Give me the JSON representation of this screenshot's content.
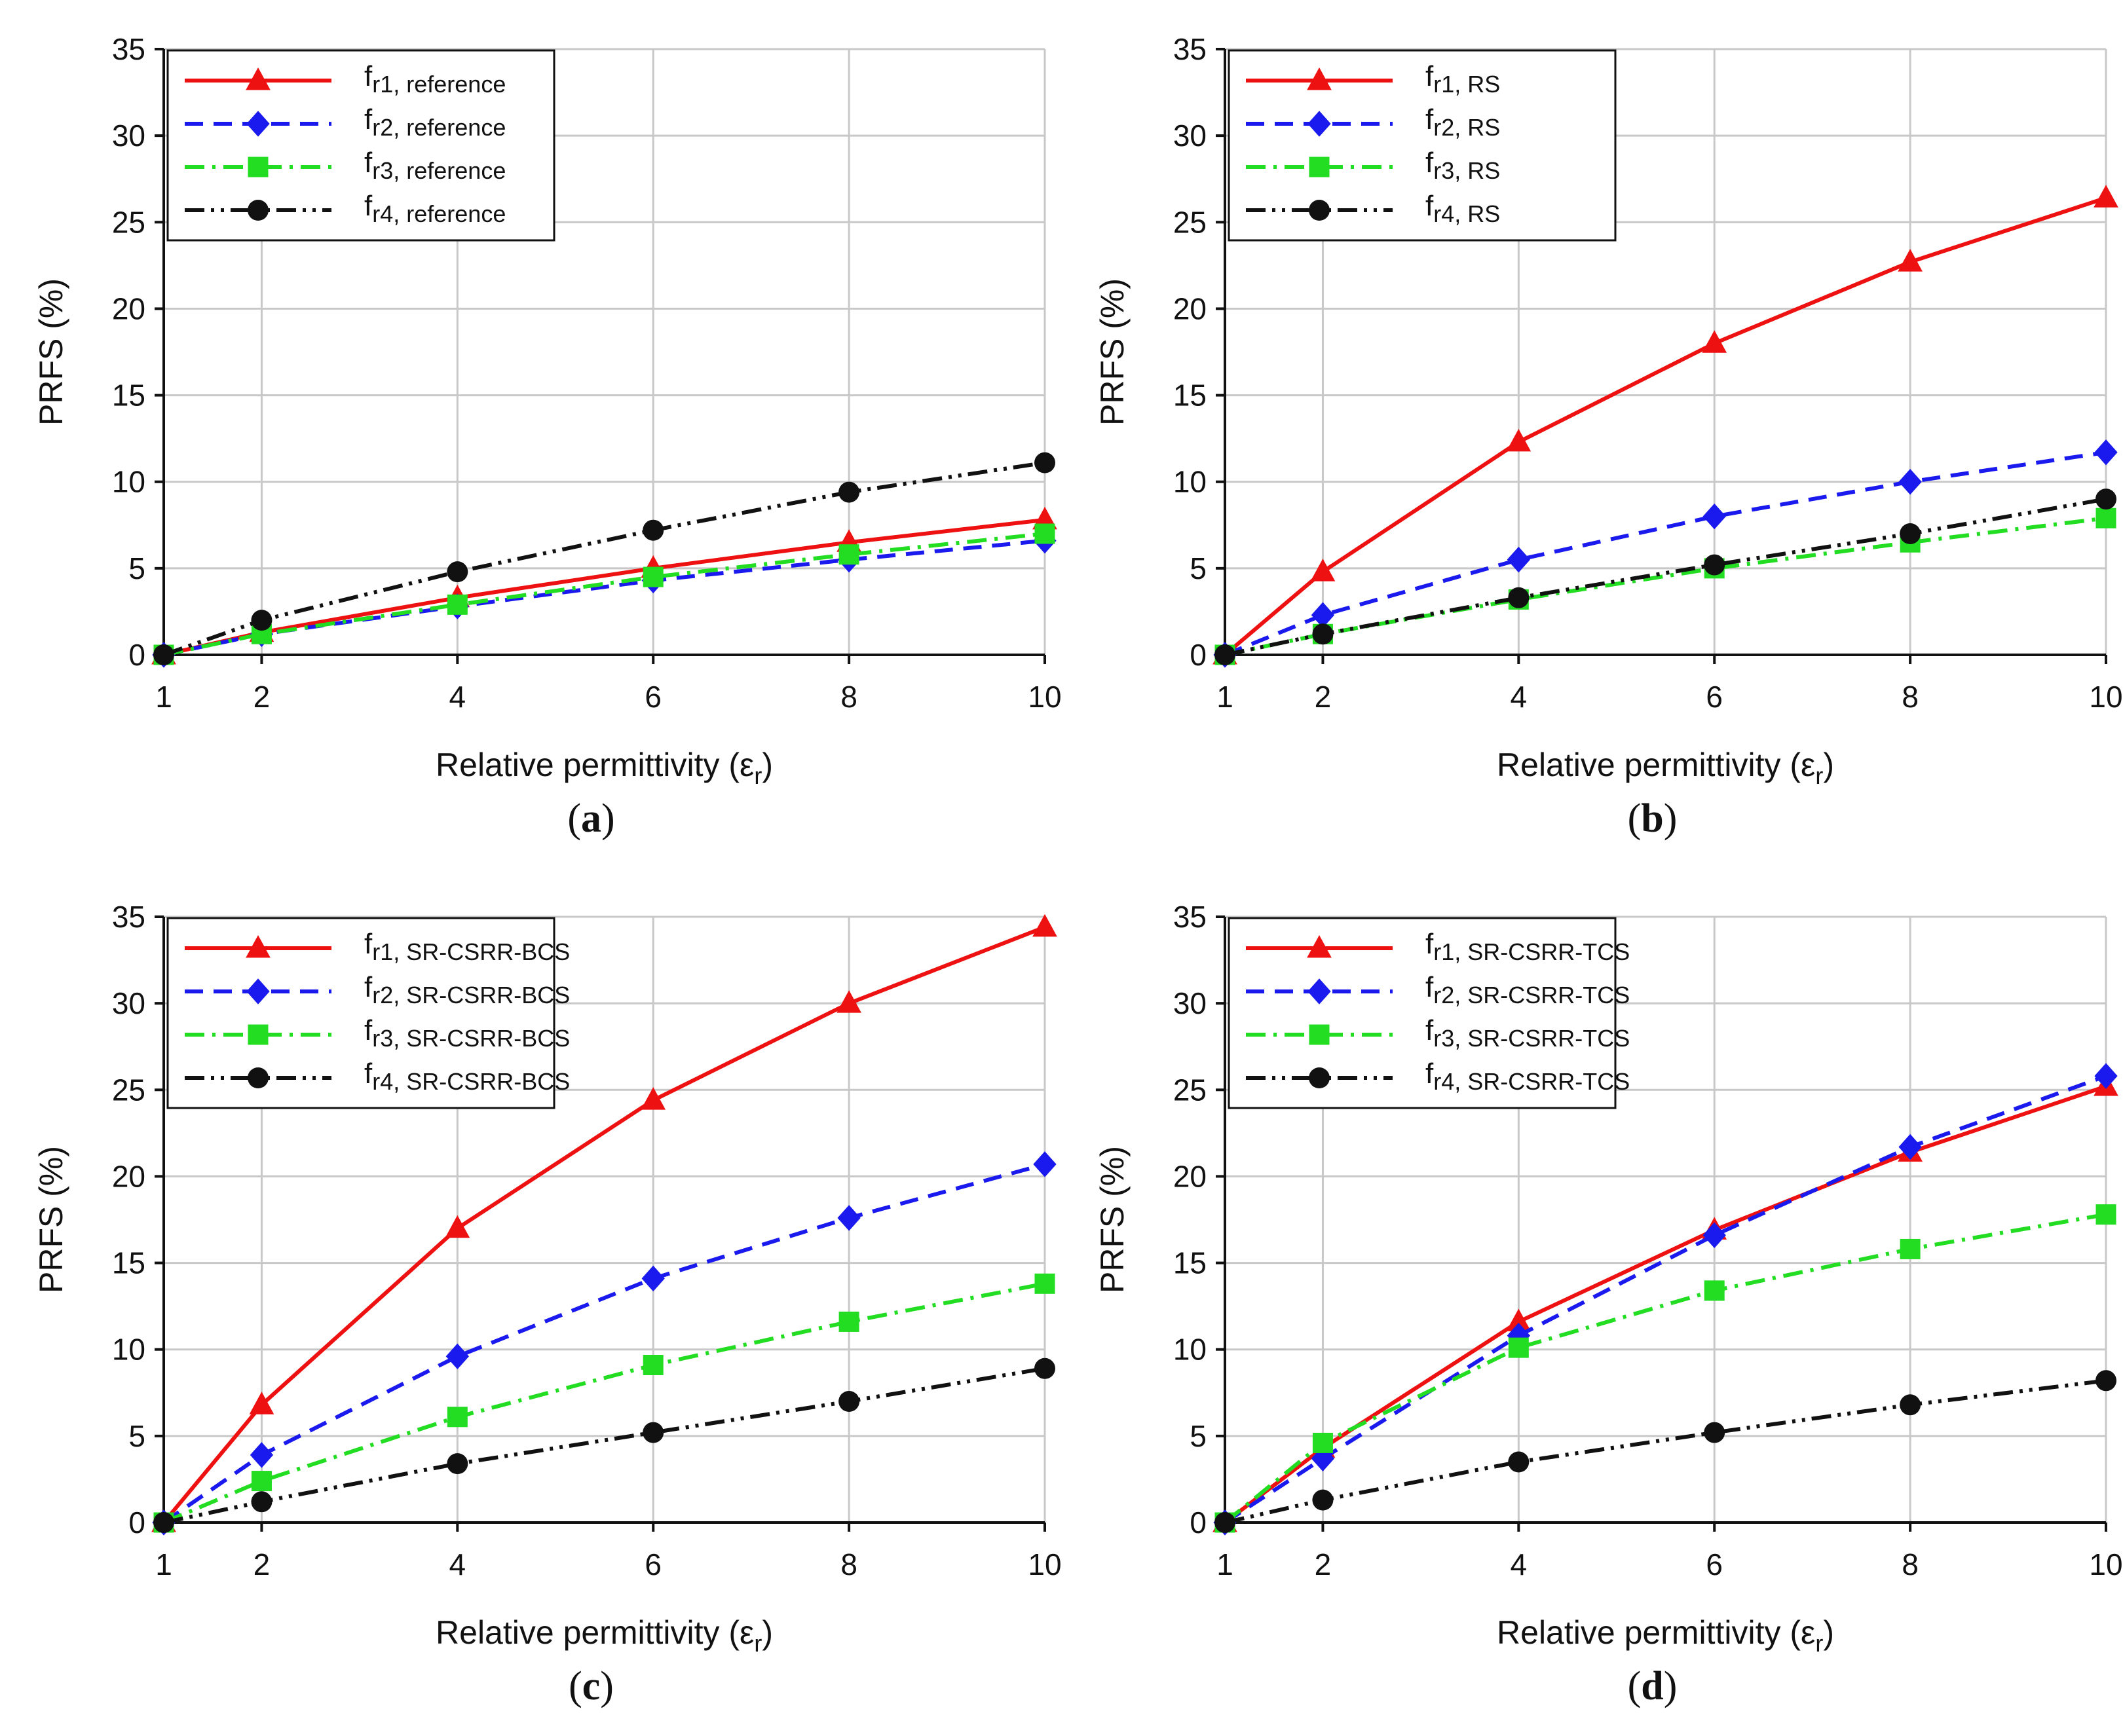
{
  "chart_data": [
    {
      "type": "line",
      "panel_label": "a",
      "caption": "(a)",
      "xlabel_main": "Relative permittivity (ε",
      "xlabel_sub": "r",
      "xlabel_close": ")",
      "ylabel": "PRFS (%)",
      "x": [
        1,
        2,
        4,
        6,
        8,
        10
      ],
      "xticks": [
        1,
        2,
        4,
        6,
        8,
        10
      ],
      "yticks": [
        0,
        5,
        10,
        15,
        20,
        25,
        30,
        35
      ],
      "xlim": [
        1,
        10
      ],
      "ylim": [
        0,
        35
      ],
      "grid": true,
      "legend_position": "top-left",
      "series": [
        {
          "name_main": "f",
          "name_sub": "r1, reference",
          "values": [
            0,
            1.3,
            3.3,
            5.0,
            6.5,
            7.8
          ],
          "color": "#ee1111",
          "marker": "triangle",
          "dash": "none"
        },
        {
          "name_main": "f",
          "name_sub": "r2, reference",
          "values": [
            0,
            1.2,
            2.8,
            4.3,
            5.5,
            6.6
          ],
          "color": "#1a1aee",
          "marker": "diamond",
          "dash": "dash"
        },
        {
          "name_main": "f",
          "name_sub": "r3, reference",
          "values": [
            0,
            1.2,
            2.9,
            4.5,
            5.8,
            7.0
          ],
          "color": "#22dd22",
          "marker": "square",
          "dash": "dashdot"
        },
        {
          "name_main": "f",
          "name_sub": "r4, reference",
          "values": [
            0,
            2.0,
            4.8,
            7.2,
            9.4,
            11.1
          ],
          "color": "#111111",
          "marker": "circle",
          "dash": "dashdotdot"
        }
      ]
    },
    {
      "type": "line",
      "panel_label": "b",
      "caption": "(b)",
      "xlabel_main": "Relative permittivity (ε",
      "xlabel_sub": "r",
      "xlabel_close": ")",
      "ylabel": "PRFS (%)",
      "x": [
        1,
        2,
        4,
        6,
        8,
        10
      ],
      "xticks": [
        1,
        2,
        4,
        6,
        8,
        10
      ],
      "yticks": [
        0,
        5,
        10,
        15,
        20,
        25,
        30,
        35
      ],
      "xlim": [
        1,
        10
      ],
      "ylim": [
        0,
        35
      ],
      "grid": true,
      "legend_position": "top-left",
      "series": [
        {
          "name_main": "f",
          "name_sub": "r1, RS",
          "values": [
            0,
            4.8,
            12.3,
            18.0,
            22.7,
            26.4
          ],
          "color": "#ee1111",
          "marker": "triangle",
          "dash": "none"
        },
        {
          "name_main": "f",
          "name_sub": "r2, RS",
          "values": [
            0,
            2.3,
            5.5,
            8.0,
            10.0,
            11.7
          ],
          "color": "#1a1aee",
          "marker": "diamond",
          "dash": "dash"
        },
        {
          "name_main": "f",
          "name_sub": "r3, RS",
          "values": [
            0,
            1.2,
            3.2,
            5.0,
            6.5,
            7.9
          ],
          "color": "#22dd22",
          "marker": "square",
          "dash": "dashdot"
        },
        {
          "name_main": "f",
          "name_sub": "r4, RS",
          "values": [
            0,
            1.2,
            3.3,
            5.2,
            7.0,
            9.0
          ],
          "color": "#111111",
          "marker": "circle",
          "dash": "dashdotdot"
        }
      ]
    },
    {
      "type": "line",
      "panel_label": "c",
      "caption": "(c)",
      "xlabel_main": "Relative permittivity (ε",
      "xlabel_sub": "r",
      "xlabel_close": ")",
      "ylabel": "PRFS (%)",
      "x": [
        1,
        2,
        4,
        6,
        8,
        10
      ],
      "xticks": [
        1,
        2,
        4,
        6,
        8,
        10
      ],
      "yticks": [
        0,
        5,
        10,
        15,
        20,
        25,
        30,
        35
      ],
      "xlim": [
        1,
        10
      ],
      "ylim": [
        0,
        35
      ],
      "grid": true,
      "legend_position": "top-left",
      "series": [
        {
          "name_main": "f",
          "name_sub": "r1, SR-CSRR-BCS",
          "values": [
            0,
            6.8,
            17.0,
            24.4,
            30.0,
            34.4
          ],
          "color": "#ee1111",
          "marker": "triangle",
          "dash": "none"
        },
        {
          "name_main": "f",
          "name_sub": "r2, SR-CSRR-BCS",
          "values": [
            0,
            3.9,
            9.6,
            14.1,
            17.6,
            20.7
          ],
          "color": "#1a1aee",
          "marker": "diamond",
          "dash": "dash"
        },
        {
          "name_main": "f",
          "name_sub": "r3, SR-CSRR-BCS",
          "values": [
            0,
            2.4,
            6.1,
            9.1,
            11.6,
            13.8
          ],
          "color": "#22dd22",
          "marker": "square",
          "dash": "dashdot"
        },
        {
          "name_main": "f",
          "name_sub": "r4, SR-CSRR-BCS",
          "values": [
            0,
            1.2,
            3.4,
            5.2,
            7.0,
            8.9
          ],
          "color": "#111111",
          "marker": "circle",
          "dash": "dashdotdot"
        }
      ]
    },
    {
      "type": "line",
      "panel_label": "d",
      "caption": "(d)",
      "xlabel_main": "Relative permittivity (ε",
      "xlabel_sub": "r",
      "xlabel_close": ")",
      "ylabel": "PRFS (%)",
      "x": [
        1,
        2,
        4,
        6,
        8,
        10
      ],
      "xticks": [
        1,
        2,
        4,
        6,
        8,
        10
      ],
      "yticks": [
        0,
        5,
        10,
        15,
        20,
        25,
        30,
        35
      ],
      "xlim": [
        1,
        10
      ],
      "ylim": [
        0,
        35
      ],
      "grid": true,
      "legend_position": "top-left",
      "series": [
        {
          "name_main": "f",
          "name_sub": "r1, SR-CSRR-TCS",
          "values": [
            0,
            4.3,
            11.6,
            16.9,
            21.4,
            25.2
          ],
          "color": "#ee1111",
          "marker": "triangle",
          "dash": "none"
        },
        {
          "name_main": "f",
          "name_sub": "r2, SR-CSRR-TCS",
          "values": [
            0,
            3.7,
            10.8,
            16.6,
            21.7,
            25.8
          ],
          "color": "#1a1aee",
          "marker": "diamond",
          "dash": "dash"
        },
        {
          "name_main": "f",
          "name_sub": "r3, SR-CSRR-TCS",
          "values": [
            0,
            4.6,
            10.1,
            13.4,
            15.8,
            17.8
          ],
          "color": "#22dd22",
          "marker": "square",
          "dash": "dashdot"
        },
        {
          "name_main": "f",
          "name_sub": "r4, SR-CSRR-TCS",
          "values": [
            0,
            1.3,
            3.5,
            5.2,
            6.8,
            8.2
          ],
          "color": "#111111",
          "marker": "circle",
          "dash": "dashdotdot"
        }
      ]
    }
  ]
}
